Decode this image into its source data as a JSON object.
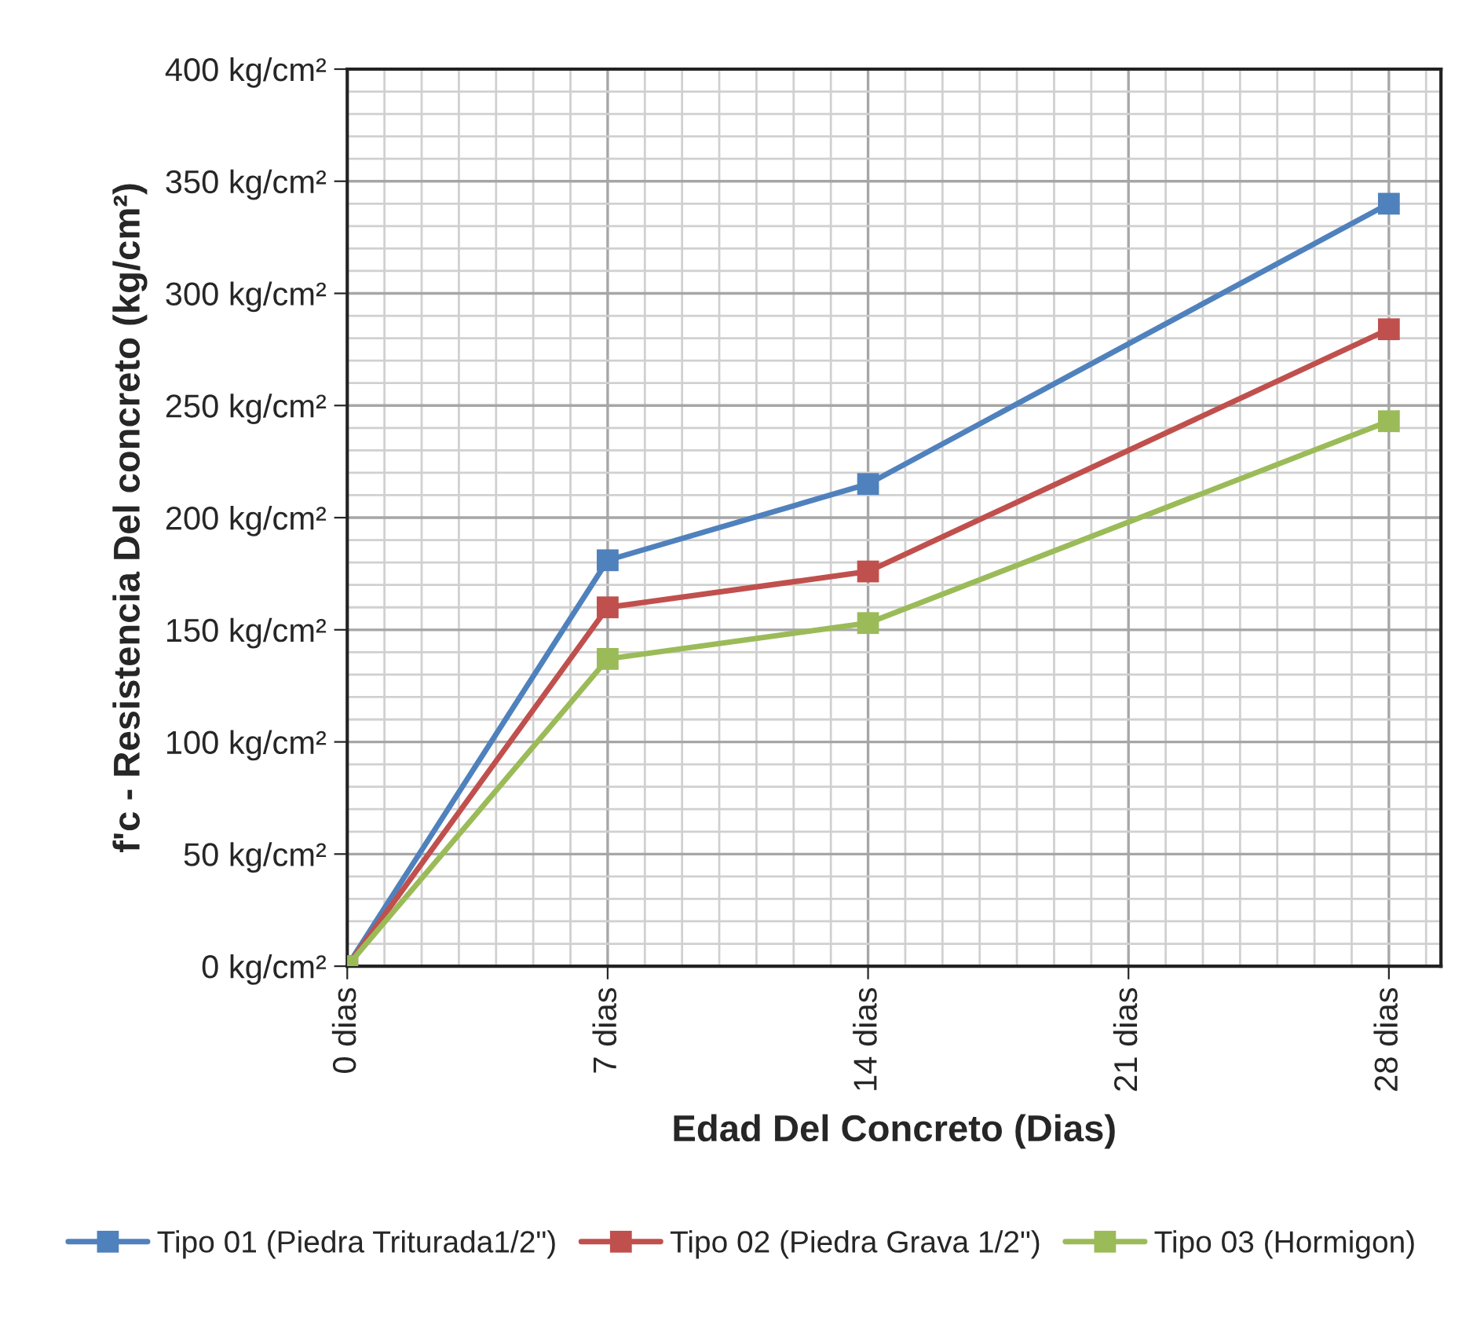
{
  "chart_data": {
    "type": "line",
    "xlabel": "Edad Del Concreto (Dias)",
    "ylabel": "f'c - Resistencia Del concreto (kg/cm²)",
    "x": [
      0,
      7,
      14,
      28
    ],
    "series": [
      {
        "name": "Tipo 01 (Piedra Triturada1/2\")",
        "color": "#4f81bd",
        "values": [
          0,
          181,
          215,
          340
        ]
      },
      {
        "name": "Tipo 02 (Piedra Grava 1/2\")",
        "color": "#c0504d",
        "values": [
          0,
          160,
          176,
          284
        ]
      },
      {
        "name": "Tipo 03 (Hormigon)",
        "color": "#9bbb59",
        "values": [
          0,
          137,
          153,
          243
        ]
      }
    ],
    "xlim": [
      0,
      29.4
    ],
    "xticks": [
      {
        "value": 0,
        "label": "0 dias"
      },
      {
        "value": 7,
        "label": "7 dias"
      },
      {
        "value": 14,
        "label": "14 dias"
      },
      {
        "value": 21,
        "label": "21 dias"
      },
      {
        "value": 28,
        "label": "28 dias"
      }
    ],
    "ylim": [
      0,
      400
    ],
    "yticks": [
      {
        "value": 0,
        "label": "0 kg/cm²"
      },
      {
        "value": 50,
        "label": "50 kg/cm²"
      },
      {
        "value": 100,
        "label": "100 kg/cm²"
      },
      {
        "value": 150,
        "label": "150 kg/cm²"
      },
      {
        "value": 200,
        "label": "200 kg/cm²"
      },
      {
        "value": 250,
        "label": "250 kg/cm²"
      },
      {
        "value": 300,
        "label": "300 kg/cm²"
      },
      {
        "value": 350,
        "label": "350 kg/cm²"
      },
      {
        "value": 400,
        "label": "400 kg/cm²"
      }
    ],
    "grid": true,
    "legend": "bottom",
    "marker": "square",
    "line_style": "solid"
  }
}
